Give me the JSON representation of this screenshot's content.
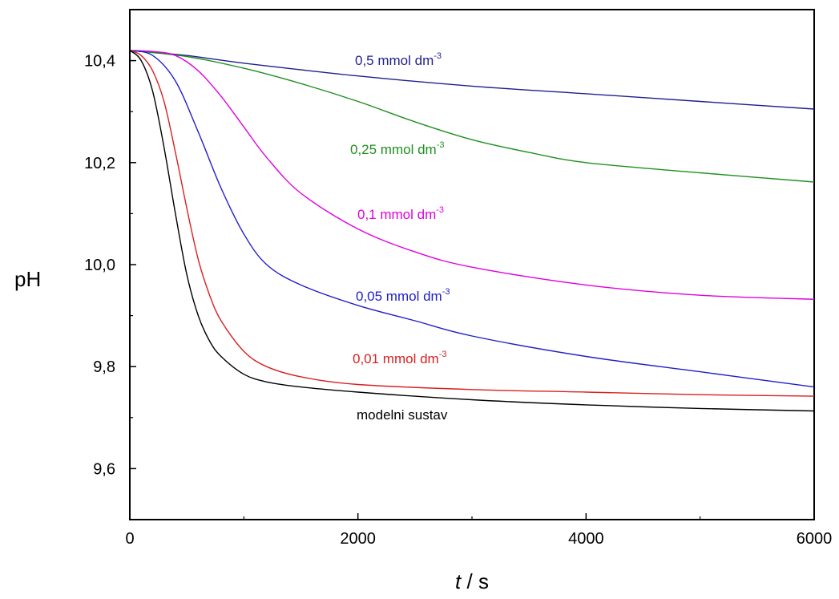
{
  "chart_data": {
    "type": "line",
    "title": "",
    "xlabel_var": "t",
    "xlabel_unit": " / s",
    "ylabel": "pH",
    "xlim": [
      0,
      6000
    ],
    "ylim": [
      9.5,
      10.5
    ],
    "xticks": [
      0,
      2000,
      4000,
      6000
    ],
    "yticks": [
      9.6,
      9.8,
      10.0,
      10.2,
      10.4
    ],
    "xtick_labels": [
      "0",
      "2000",
      "4000",
      "6000"
    ],
    "ytick_labels": [
      "9,6",
      "9,8",
      "10,0",
      "10,2",
      "10,4"
    ],
    "grid": false,
    "legend": "inline labels",
    "series": [
      {
        "name": "0,5 mmol dm",
        "sup": "-3",
        "color": "#1f1f8f",
        "x": [
          0,
          500,
          1000,
          2000,
          3000,
          4000,
          5000,
          6000
        ],
        "y": [
          10.42,
          10.41,
          10.395,
          10.37,
          10.35,
          10.335,
          10.32,
          10.305
        ]
      },
      {
        "name": "0,25 mmol dm",
        "sup": "-3",
        "color": "#1f8f1f",
        "x": [
          0,
          500,
          1000,
          1500,
          2000,
          2500,
          3000,
          3500,
          4000,
          5000,
          6000
        ],
        "y": [
          10.42,
          10.408,
          10.385,
          10.355,
          10.32,
          10.28,
          10.245,
          10.22,
          10.2,
          10.18,
          10.162
        ]
      },
      {
        "name": "0,1 mmol dm",
        "sup": "-3",
        "color": "#e000e0",
        "x": [
          0,
          200,
          400,
          600,
          800,
          1000,
          1200,
          1500,
          2000,
          2500,
          3000,
          4000,
          5000,
          6000
        ],
        "y": [
          10.42,
          10.418,
          10.41,
          10.38,
          10.33,
          10.27,
          10.21,
          10.14,
          10.07,
          10.025,
          9.995,
          9.96,
          9.94,
          9.932
        ]
      },
      {
        "name": "0,05 mmol dm",
        "sup": "-3",
        "color": "#2020c8",
        "x": [
          0,
          200,
          400,
          600,
          800,
          1000,
          1200,
          1500,
          2000,
          2500,
          3000,
          4000,
          5000,
          6000
        ],
        "y": [
          10.42,
          10.41,
          10.36,
          10.26,
          10.15,
          10.06,
          10.0,
          9.96,
          9.92,
          9.89,
          9.86,
          9.82,
          9.79,
          9.76
        ]
      },
      {
        "name": "0,01 mmol dm",
        "sup": "-3",
        "color": "#d82020",
        "x": [
          0,
          100,
          200,
          300,
          400,
          500,
          600,
          700,
          800,
          1000,
          1200,
          1500,
          2000,
          3000,
          4000,
          5000,
          6000
        ],
        "y": [
          10.42,
          10.41,
          10.38,
          10.32,
          10.22,
          10.11,
          10.01,
          9.94,
          9.89,
          9.83,
          9.8,
          9.78,
          9.765,
          9.755,
          9.75,
          9.745,
          9.742
        ]
      },
      {
        "name": "modelni sustav",
        "sup": "",
        "color": "#000000",
        "x": [
          0,
          100,
          200,
          300,
          400,
          500,
          600,
          700,
          800,
          1000,
          1200,
          1500,
          2000,
          3000,
          4000,
          5000,
          6000
        ],
        "y": [
          10.42,
          10.4,
          10.34,
          10.23,
          10.1,
          9.98,
          9.9,
          9.85,
          9.82,
          9.785,
          9.77,
          9.76,
          9.75,
          9.735,
          9.725,
          9.718,
          9.713
        ]
      }
    ]
  }
}
